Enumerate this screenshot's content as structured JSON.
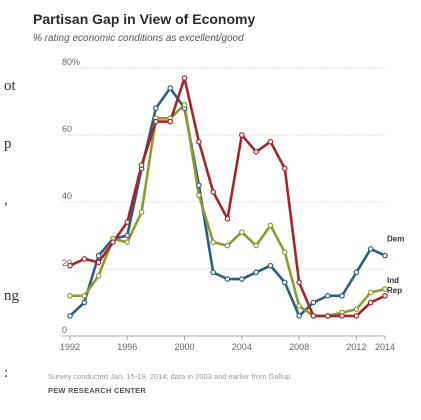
{
  "title": "Partisan Gap in View of Economy",
  "subtitle": "% rating economic conditions as excellent/good",
  "cropped_fragments": [
    "ot",
    "p",
    ",",
    "ng",
    ":"
  ],
  "note": "Survey conducted Jan. 15-19, 2014; data in 2003 and earlier from Gallup",
  "source": "PEW RESEARCH CENTER",
  "colors": {
    "Dem": "#2e5f7a",
    "Ind": "#8e9a34",
    "Rep": "#a8242a",
    "grid": "#c8c8c8"
  },
  "chart_data": {
    "type": "line",
    "title": "Partisan Gap in View of Economy",
    "subtitle": "% rating economic conditions as excellent/good",
    "xlim": [
      1992,
      2014
    ],
    "ylim": [
      0,
      80
    ],
    "x_ticks": [
      "1992",
      "1996",
      "2000",
      "2004",
      "2008",
      "2012",
      "2014"
    ],
    "y_ticks": [
      "0",
      "20",
      "40",
      "60",
      "80%"
    ],
    "grid": true,
    "series": [
      {
        "name": "Dem",
        "x": [
          1992,
          1993,
          1994,
          1995,
          1996,
          1997,
          1998,
          1999,
          2000,
          2001,
          2002,
          2003,
          2004,
          2005,
          2006,
          2007,
          2008,
          2009,
          2010,
          2011,
          2012,
          2013,
          2014
        ],
        "y": [
          6,
          10,
          24,
          29,
          30,
          50,
          68,
          74,
          68,
          45,
          19,
          17,
          17,
          19,
          21,
          16,
          6,
          10,
          12,
          12,
          19,
          26,
          24
        ]
      },
      {
        "name": "Ind",
        "x": [
          1992,
          1993,
          1994,
          1995,
          1996,
          1997,
          1998,
          1999,
          2000,
          2001,
          2002,
          2003,
          2004,
          2005,
          2006,
          2007,
          2008,
          2009,
          2010,
          2011,
          2012,
          2013,
          2014
        ],
        "y": [
          12,
          12,
          18,
          29,
          28,
          37,
          65,
          65,
          69,
          42,
          28,
          27,
          31,
          27,
          33,
          25,
          9,
          6,
          6,
          7,
          8,
          13,
          14
        ]
      },
      {
        "name": "Rep",
        "x": [
          1992,
          1993,
          1994,
          1995,
          1996,
          1997,
          1998,
          1999,
          2000,
          2001,
          2002,
          2003,
          2004,
          2005,
          2006,
          2007,
          2008,
          2009,
          2010,
          2011,
          2012,
          2013,
          2014
        ],
        "y": [
          21,
          23,
          22,
          28,
          34,
          51,
          64,
          64,
          77,
          58,
          43,
          35,
          60,
          55,
          58,
          50,
          16,
          6,
          6,
          6,
          6,
          10,
          12
        ]
      }
    ]
  }
}
